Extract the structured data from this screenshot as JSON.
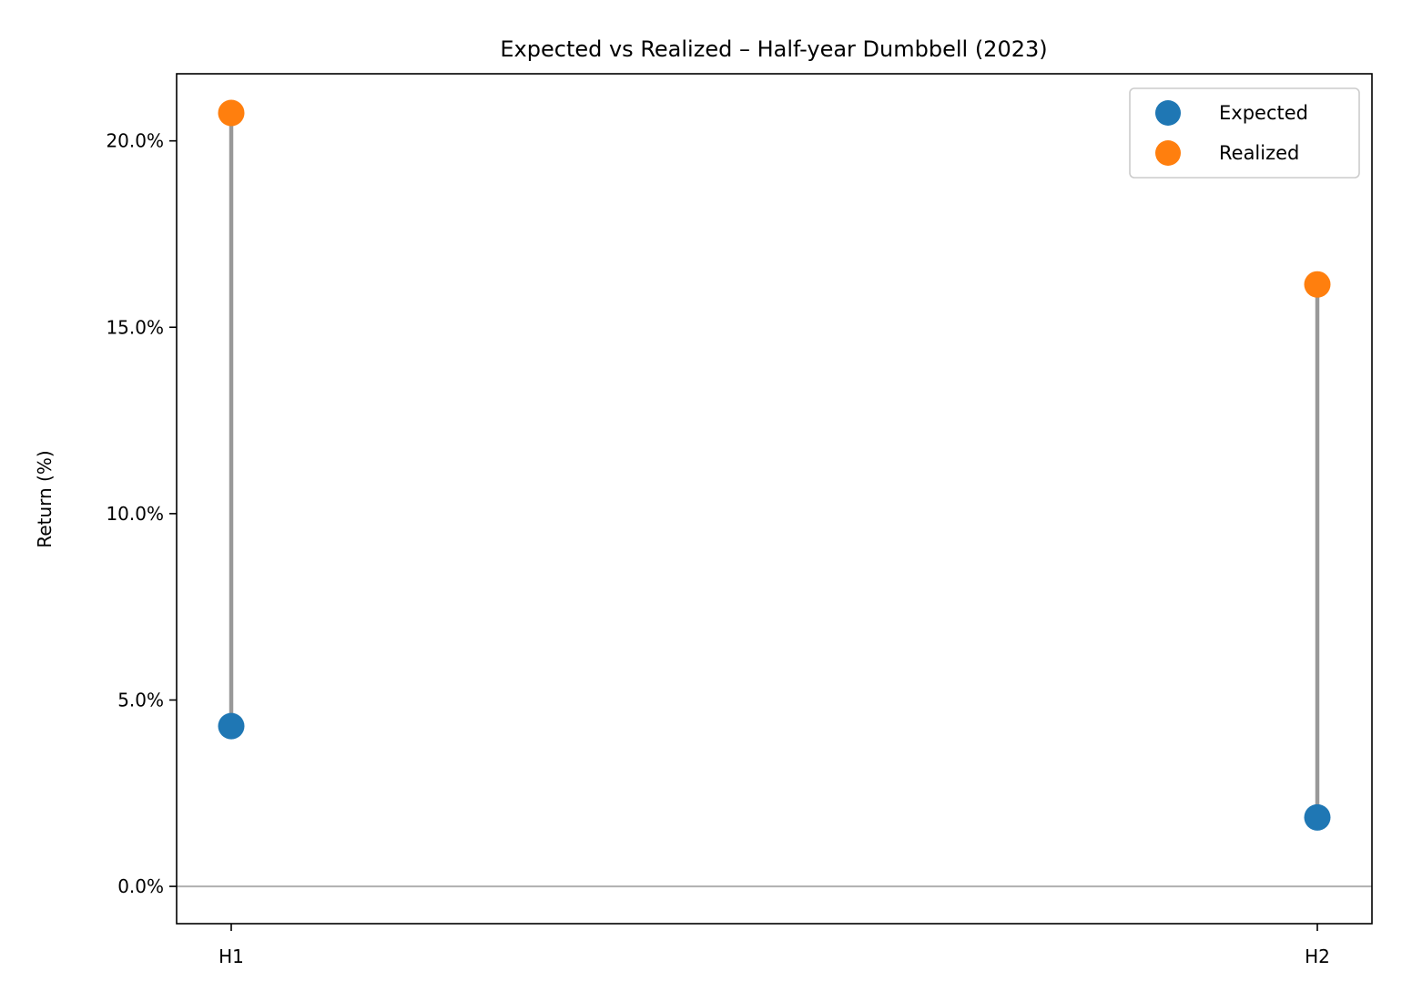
{
  "chart_data": {
    "type": "scatter",
    "subtype": "dumbbell",
    "title": "Expected vs Realized – Half-year Dumbbell (2023)",
    "xlabel": "",
    "ylabel": "Return (%)",
    "categories": [
      "H1",
      "H2"
    ],
    "ylim": [
      -1.0,
      21.8
    ],
    "yticks": [
      0,
      5,
      10,
      15,
      20
    ],
    "ytick_labels": [
      "0.0%",
      "5.0%",
      "10.0%",
      "15.0%",
      "20.0%"
    ],
    "series": [
      {
        "name": "Expected",
        "values": [
          4.3,
          1.85
        ],
        "color": "#1f77b4"
      },
      {
        "name": "Realized",
        "values": [
          20.75,
          16.15
        ],
        "color": "#ff7f0e"
      }
    ],
    "connector_color": "#999999",
    "reference_line": {
      "y": 0,
      "color": "#b0b0b0"
    },
    "grid": false,
    "legend": {
      "placement": "top-right"
    }
  }
}
